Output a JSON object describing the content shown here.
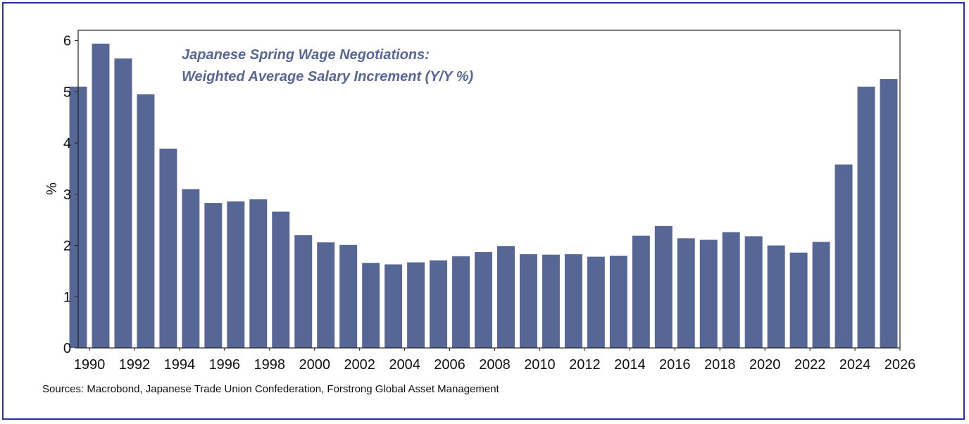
{
  "colors": {
    "bar": "#566796",
    "title": "#566796",
    "frame": "#2b2fae"
  },
  "chart_data": {
    "type": "bar",
    "title_lines": [
      "Japanese Spring Wage Negotiations:",
      "Weighted Average Salary Increment (Y/Y %)"
    ],
    "xlabel": "",
    "ylabel": "%",
    "ylim": [
      0,
      6.2
    ],
    "yticks": [
      0,
      1,
      2,
      3,
      4,
      5,
      6
    ],
    "xlim": [
      1989.5,
      2026
    ],
    "xticks": [
      1990,
      1992,
      1994,
      1996,
      1998,
      2000,
      2002,
      2004,
      2006,
      2008,
      2010,
      2012,
      2014,
      2016,
      2018,
      2020,
      2022,
      2024,
      2026
    ],
    "categories": [
      1989,
      1990,
      1991,
      1992,
      1993,
      1994,
      1995,
      1996,
      1997,
      1998,
      1999,
      2000,
      2001,
      2002,
      2003,
      2004,
      2005,
      2006,
      2007,
      2008,
      2009,
      2010,
      2011,
      2012,
      2013,
      2014,
      2015,
      2016,
      2017,
      2018,
      2019,
      2020,
      2021,
      2022,
      2023,
      2024,
      2025
    ],
    "values": [
      5.1,
      5.94,
      5.65,
      4.95,
      3.89,
      3.1,
      2.83,
      2.86,
      2.9,
      2.66,
      2.2,
      2.06,
      2.01,
      1.66,
      1.63,
      1.67,
      1.71,
      1.79,
      1.87,
      1.99,
      1.83,
      1.82,
      1.83,
      1.78,
      1.8,
      2.19,
      2.38,
      2.14,
      2.11,
      2.26,
      2.18,
      2.0,
      1.86,
      2.07,
      3.58,
      5.1,
      5.25
    ],
    "grid": false,
    "legend": "none"
  },
  "source_text": "Sources: Macrobond, Japanese Trade Union Confederation, Forstrong Global Asset Management"
}
